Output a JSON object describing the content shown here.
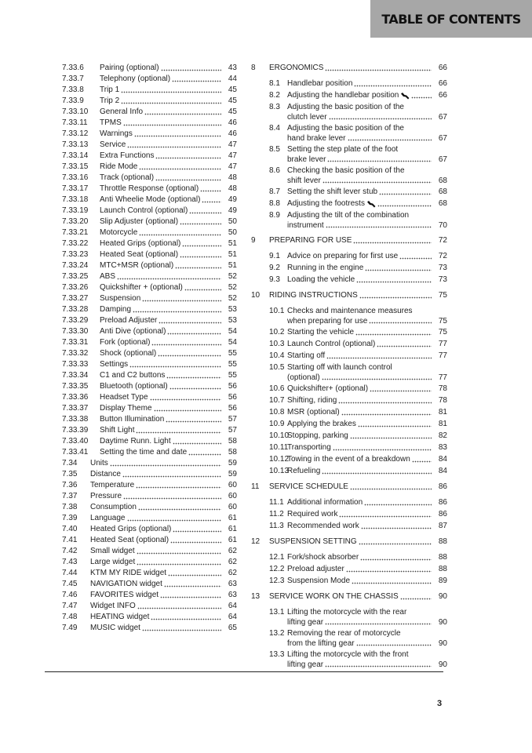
{
  "header": {
    "title": "TABLE OF CONTENTS"
  },
  "left": [
    {
      "num": "7.33.6",
      "title": "Pairing (optional)",
      "page": "43"
    },
    {
      "num": "7.33.7",
      "title": "Telephony (optional)",
      "page": "44"
    },
    {
      "num": "7.33.8",
      "title": "Trip 1",
      "page": "45"
    },
    {
      "num": "7.33.9",
      "title": "Trip 2",
      "page": "45"
    },
    {
      "num": "7.33.10",
      "title": "General Info",
      "page": "45"
    },
    {
      "num": "7.33.11",
      "title": "TPMS",
      "page": "46"
    },
    {
      "num": "7.33.12",
      "title": "Warnings",
      "page": "46"
    },
    {
      "num": "7.33.13",
      "title": "Service",
      "page": "47"
    },
    {
      "num": "7.33.14",
      "title": "Extra Functions",
      "page": "47"
    },
    {
      "num": "7.33.15",
      "title": "Ride Mode",
      "page": "47"
    },
    {
      "num": "7.33.16",
      "title": "Track (optional)",
      "page": "48"
    },
    {
      "num": "7.33.17",
      "title": "Throttle Response (optional)",
      "page": "48"
    },
    {
      "num": "7.33.18",
      "title": "Anti Wheelie Mode (optional)",
      "page": "49"
    },
    {
      "num": "7.33.19",
      "title": "Launch Control (optional)",
      "page": "49"
    },
    {
      "num": "7.33.20",
      "title": "Slip Adjuster (optional)",
      "page": "50"
    },
    {
      "num": "7.33.21",
      "title": "Motorcycle",
      "page": "50"
    },
    {
      "num": "7.33.22",
      "title": "Heated Grips (optional)",
      "page": "51"
    },
    {
      "num": "7.33.23",
      "title": "Heated Seat (optional)",
      "page": "51"
    },
    {
      "num": "7.33.24",
      "title": "MTC+MSR (optional)",
      "page": "51"
    },
    {
      "num": "7.33.25",
      "title": "ABS",
      "page": "52"
    },
    {
      "num": "7.33.26",
      "title": "Quickshifter + (optional)",
      "page": "52"
    },
    {
      "num": "7.33.27",
      "title": "Suspension",
      "page": "52"
    },
    {
      "num": "7.33.28",
      "title": "Damping",
      "page": "53"
    },
    {
      "num": "7.33.29",
      "title": "Preload Adjuster",
      "page": "53"
    },
    {
      "num": "7.33.30",
      "title": "Anti Dive (optional)",
      "page": "54"
    },
    {
      "num": "7.33.31",
      "title": "Fork (optional)",
      "page": "54"
    },
    {
      "num": "7.33.32",
      "title": "Shock (optional)",
      "page": "55"
    },
    {
      "num": "7.33.33",
      "title": "Settings",
      "page": "55"
    },
    {
      "num": "7.33.34",
      "title": "C1 and C2 buttons",
      "page": "55"
    },
    {
      "num": "7.33.35",
      "title": "Bluetooth (optional)",
      "page": "56"
    },
    {
      "num": "7.33.36",
      "title": "Headset Type",
      "page": "56"
    },
    {
      "num": "7.33.37",
      "title": "Display Theme",
      "page": "56"
    },
    {
      "num": "7.33.38",
      "title": "Button Illumination",
      "page": "57"
    },
    {
      "num": "7.33.39",
      "title": "Shift Light",
      "page": "57"
    },
    {
      "num": "7.33.40",
      "title": "Daytime Runn. Light",
      "page": "58"
    },
    {
      "num": "7.33.41",
      "title": "Setting the time and date",
      "page": "58"
    },
    {
      "num": "7.34",
      "title": "Units",
      "page": "59"
    },
    {
      "num": "7.35",
      "title": "Distance",
      "page": "59"
    },
    {
      "num": "7.36",
      "title": "Temperature",
      "page": "60"
    },
    {
      "num": "7.37",
      "title": "Pressure",
      "page": "60"
    },
    {
      "num": "7.38",
      "title": "Consumption",
      "page": "60"
    },
    {
      "num": "7.39",
      "title": "Language",
      "page": "61"
    },
    {
      "num": "7.40",
      "title": "Heated Grips (optional)",
      "page": "61"
    },
    {
      "num": "7.41",
      "title": "Heated Seat (optional)",
      "page": "61"
    },
    {
      "num": "7.42",
      "title": "Small widget",
      "page": "62"
    },
    {
      "num": "7.43",
      "title": "Large widget",
      "page": "62"
    },
    {
      "num": "7.44",
      "title": "KTM MY RIDE widget",
      "page": "62"
    },
    {
      "num": "7.45",
      "title": "NAVIGATION widget",
      "page": "63"
    },
    {
      "num": "7.46",
      "title": "FAVORITES widget",
      "page": "63"
    },
    {
      "num": "7.47",
      "title": "Widget INFO",
      "page": "64"
    },
    {
      "num": "7.48",
      "title": "HEATING widget",
      "page": "64"
    },
    {
      "num": "7.49",
      "title": "MUSIC widget",
      "page": "65"
    }
  ],
  "right": [
    {
      "num": "8",
      "title": "ERGONOMICS",
      "page": "66",
      "items": [
        {
          "num": "8.1",
          "title": "Handlebar position",
          "page": "66"
        },
        {
          "num": "8.2",
          "title": "Adjusting the handlebar position",
          "icon": "wrench-icon",
          "page": "66"
        },
        {
          "num": "8.3",
          "title": "Adjusting the basic position of the",
          "title_cont": "clutch lever",
          "page": "67"
        },
        {
          "num": "8.4",
          "title": "Adjusting the basic position of the",
          "title_cont": "hand brake lever",
          "page": "67"
        },
        {
          "num": "8.5",
          "title": "Setting the step plate of the foot",
          "title_cont": "brake lever",
          "page": "67"
        },
        {
          "num": "8.6",
          "title": "Checking the basic position of the",
          "title_cont": "shift lever",
          "page": "68"
        },
        {
          "num": "8.7",
          "title": "Setting the shift lever stub",
          "page": "68"
        },
        {
          "num": "8.8",
          "title": "Adjusting the footrests",
          "icon": "wrench-icon",
          "page": "68"
        },
        {
          "num": "8.9",
          "title": "Adjusting the tilt of the combination",
          "title_cont": "instrument",
          "page": "70"
        }
      ]
    },
    {
      "num": "9",
      "title": "PREPARING FOR USE",
      "page": "72",
      "items": [
        {
          "num": "9.1",
          "title": "Advice on preparing for first use",
          "page": "72"
        },
        {
          "num": "9.2",
          "title": "Running in the engine",
          "page": "73"
        },
        {
          "num": "9.3",
          "title": "Loading the vehicle",
          "page": "73"
        }
      ]
    },
    {
      "num": "10",
      "title": "RIDING INSTRUCTIONS",
      "page": "75",
      "items": [
        {
          "num": "10.1",
          "title": "Checks and maintenance measures",
          "title_cont": "when preparing for use",
          "page": "75"
        },
        {
          "num": "10.2",
          "title": "Starting the vehicle",
          "page": "75"
        },
        {
          "num": "10.3",
          "title": "Launch Control (optional)",
          "page": "77"
        },
        {
          "num": "10.4",
          "title": "Starting off",
          "page": "77"
        },
        {
          "num": "10.5",
          "title": "Starting off with launch control",
          "title_cont": "(optional)",
          "page": "77"
        },
        {
          "num": "10.6",
          "title": "Quickshifter+ (optional)",
          "page": "78"
        },
        {
          "num": "10.7",
          "title": "Shifting, riding",
          "page": "78"
        },
        {
          "num": "10.8",
          "title": "MSR (optional)",
          "page": "81"
        },
        {
          "num": "10.9",
          "title": "Applying the brakes",
          "page": "81"
        },
        {
          "num": "10.10",
          "title": "Stopping, parking",
          "page": "82"
        },
        {
          "num": "10.11",
          "title": "Transporting",
          "page": "83"
        },
        {
          "num": "10.12",
          "title": "Towing in the event of a breakdown",
          "page": "84"
        },
        {
          "num": "10.13",
          "title": "Refueling",
          "page": "84"
        }
      ]
    },
    {
      "num": "11",
      "title": "SERVICE SCHEDULE",
      "page": "86",
      "items": [
        {
          "num": "11.1",
          "title": "Additional information",
          "page": "86"
        },
        {
          "num": "11.2",
          "title": "Required work",
          "page": "86"
        },
        {
          "num": "11.3",
          "title": "Recommended work",
          "page": "87"
        }
      ]
    },
    {
      "num": "12",
      "title": "SUSPENSION SETTING",
      "page": "88",
      "items": [
        {
          "num": "12.1",
          "title": "Fork/shock absorber",
          "page": "88"
        },
        {
          "num": "12.2",
          "title": "Preload adjuster",
          "page": "88"
        },
        {
          "num": "12.3",
          "title": "Suspension Mode",
          "page": "89"
        }
      ]
    },
    {
      "num": "13",
      "title": "SERVICE WORK ON THE CHASSIS",
      "page": "90",
      "items": [
        {
          "num": "13.1",
          "title": "Lifting the motorcycle with the rear",
          "title_cont": "lifting gear",
          "page": "90"
        },
        {
          "num": "13.2",
          "title": "Removing the rear of motorcycle",
          "title_cont": "from the lifting gear",
          "page": "90"
        },
        {
          "num": "13.3",
          "title": "Lifting the motorcycle with the front",
          "title_cont": "lifting gear",
          "page": "90"
        }
      ]
    }
  ],
  "footer": {
    "page_number": "3"
  }
}
